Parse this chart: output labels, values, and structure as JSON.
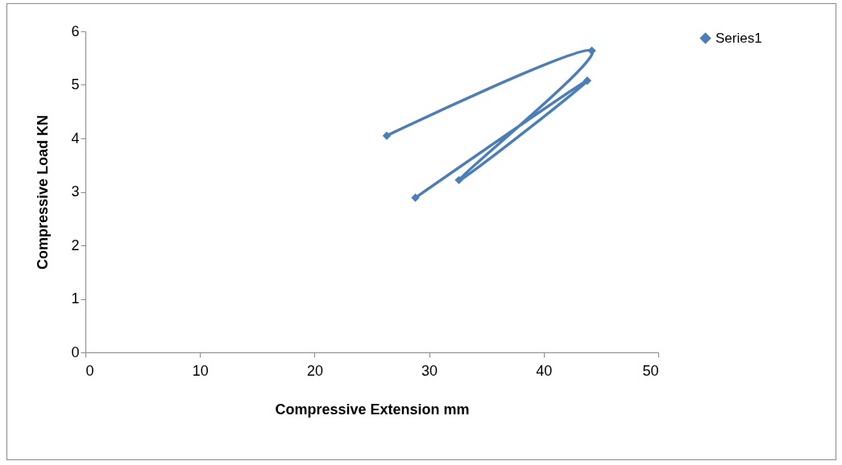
{
  "chart_data": {
    "type": "line",
    "xlabel": "Compressive Extension mm",
    "ylabel": "Compressive Load KN",
    "series": [
      {
        "name": "Series1",
        "color": "#4a7ebb",
        "x": [
          26.3,
          44.2,
          32.6,
          43.8,
          28.8
        ],
        "values": [
          4.05,
          5.64,
          3.22,
          5.08,
          2.89
        ]
      }
    ],
    "xlim": [
      0,
      50
    ],
    "xticks": [
      0,
      10,
      20,
      30,
      40,
      50
    ],
    "ylim": [
      0,
      6
    ],
    "yticks": [
      0,
      1,
      2,
      3,
      4,
      5,
      6
    ],
    "grid": false,
    "legend": "right",
    "marker": "diamond",
    "line_style": "solid"
  }
}
